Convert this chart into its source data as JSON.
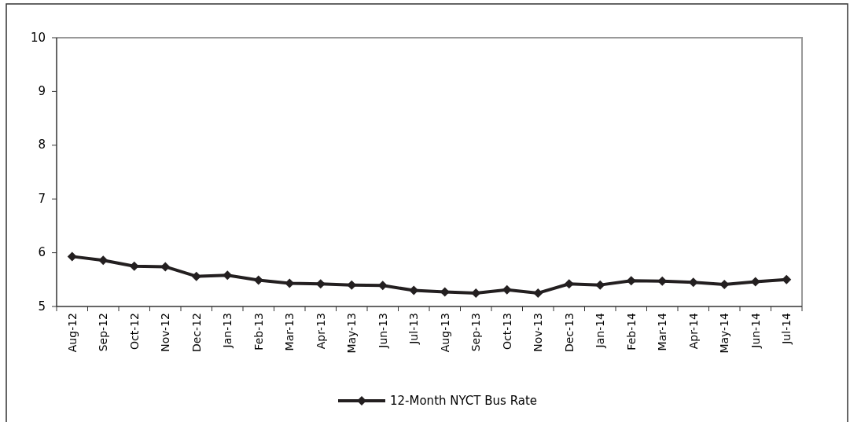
{
  "chart_data": {
    "type": "line",
    "categories": [
      "Aug-12",
      "Sep-12",
      "Oct-12",
      "Nov-12",
      "Dec-12",
      "Jan-13",
      "Feb-13",
      "Mar-13",
      "Apr-13",
      "May-13",
      "Jun-13",
      "Jul-13",
      "Aug-13",
      "Sep-13",
      "Oct-13",
      "Nov-13",
      "Dec-13",
      "Jan-14",
      "Feb-14",
      "Mar-14",
      "Apr-14",
      "May-14",
      "Jun-14",
      "Jul-14"
    ],
    "series": [
      {
        "name": "12-Month NYCT Bus Rate",
        "color": "#231f20",
        "values": [
          5.93,
          5.86,
          5.75,
          5.74,
          5.56,
          5.58,
          5.49,
          5.43,
          5.42,
          5.4,
          5.39,
          5.3,
          5.27,
          5.25,
          5.31,
          5.25,
          5.42,
          5.4,
          5.48,
          5.47,
          5.45,
          5.41,
          5.46,
          5.5
        ]
      }
    ],
    "ylim": [
      5,
      10
    ],
    "yticks": [
      5,
      6,
      7,
      8,
      9,
      10
    ],
    "grid": false,
    "legend": "bottom",
    "marker": "diamond",
    "line_style": "solid"
  }
}
